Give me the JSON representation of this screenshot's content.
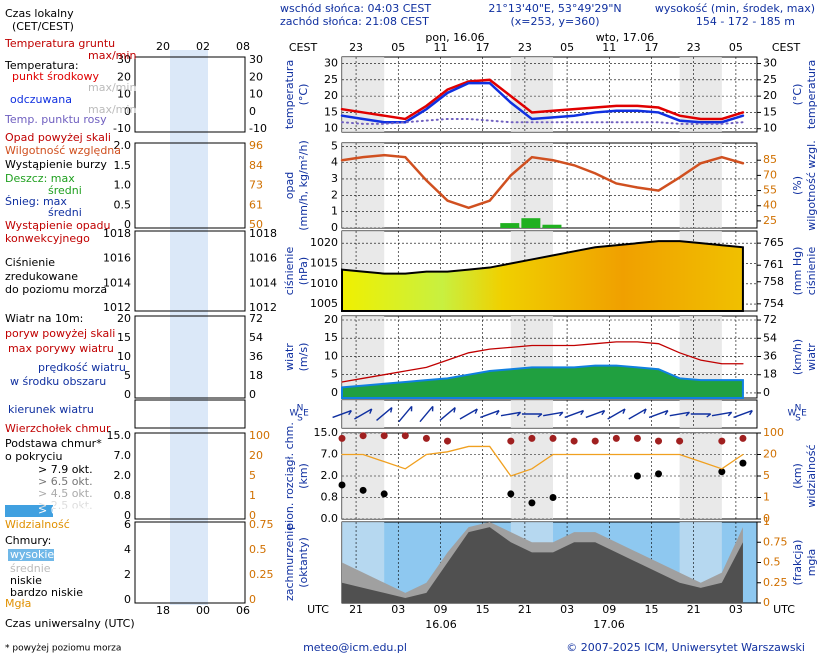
{
  "header": {
    "sunrise": "wschód słońca: 04:03 CEST",
    "sunset": "zachód słońca: 21:08 CEST",
    "coords": "21°13'40\"E, 53°49'29\"N",
    "grid": "(x=253, y=360)",
    "elev_title": "wysokość (min, środek, max)",
    "elev": "154 - 172 - 185 m",
    "tz_left": "CEST",
    "tz_right": "CEST",
    "date1": "pon, 16.06",
    "date2": "wto, 17.06",
    "utc_left": "UTC",
    "utc_right": "UTC",
    "udate1": "16.06",
    "udate2": "17.06"
  },
  "legend": {
    "items": [
      "Czas lokalny",
      "(CET/CEST)",
      "Temperatura gruntu",
      "max/min",
      "Temperatura:",
      "max/min",
      "max/min",
      "Opad powyżej skali",
      "Wystąpienie burzy",
      "Deszcz: max",
      "Śnieg: max",
      "średni",
      "Wystąpienie opadu",
      "konwekcyjnego",
      "zredukowane",
      "do poziomu morza",
      "Wiatr na 10m:",
      "poryw powyżej skali",
      "w środku obszaru",
      "Podstawa chmur*",
      "o pokryciu",
      "> 6.5 okt.",
      "> 4.5 okt.",
      "> 2.5 okt.",
      "> 0.1 okt.",
      "Chmury:",
      "wysokie",
      "bardzo niskie",
      "Mgła",
      "Czas uniwersalny (UTC)"
    ],
    "top_ticks": [
      "20",
      "02",
      "08"
    ],
    "bottom_ticks": [
      "18",
      "00",
      "06"
    ],
    "ticks": [
      {
        "left": [
          30,
          20,
          10,
          0,
          -10
        ],
        "right": [
          30,
          20,
          10,
          0,
          -10
        ]
      },
      {
        "left": [
          "2.0",
          "1.5",
          "1.0",
          "0.5",
          "0"
        ],
        "right": [
          96,
          84,
          73,
          61,
          50
        ]
      },
      {
        "left": [
          1018,
          1016,
          1014,
          1012
        ],
        "right": [
          1018,
          1016,
          1014,
          1012
        ]
      },
      {
        "left": [
          20,
          15,
          10,
          5,
          0
        ],
        "right": [
          72,
          54,
          36,
          18,
          0
        ]
      },
      {
        "left": [
          "15.0",
          "7.0",
          "2.0",
          "0.8",
          "0"
        ],
        "right": [
          100,
          20,
          5,
          1,
          0
        ]
      },
      {
        "left": [
          6,
          4,
          2,
          0
        ],
        "right": [
          0.75,
          0.5,
          0.25,
          0
        ]
      }
    ]
  },
  "footer": {
    "note": "* powyżej poziomu morza",
    "email": "meteo@icm.edu.pl",
    "copyright": "© 2007-2025 ICM, Uniwersytet Warszawski"
  },
  "chart_data": [
    {
      "type": "line",
      "ylabel": [
        "temperatura",
        "(°C)"
      ],
      "y2label": [
        "(°C)",
        "temperatura"
      ],
      "xlim": [
        0,
        59
      ],
      "xticks": [
        {
          "value": 2,
          "label": "23"
        },
        {
          "value": 8,
          "label": "05"
        },
        {
          "value": 14,
          "label": "11"
        },
        {
          "value": 20,
          "label": "17"
        },
        {
          "value": 26,
          "label": "23"
        },
        {
          "value": 32,
          "label": "05"
        },
        {
          "value": 38,
          "label": "11"
        },
        {
          "value": 44,
          "label": "17"
        },
        {
          "value": 50,
          "label": "23"
        },
        {
          "value": 56,
          "label": "05"
        }
      ],
      "x": [
        0,
        3,
        6,
        9,
        12,
        15,
        18,
        21,
        24,
        27,
        30,
        33,
        36,
        39,
        42,
        45,
        48,
        51,
        54,
        57
      ],
      "ylim": [
        9,
        32
      ],
      "yticks": [
        10,
        15,
        20,
        25,
        30
      ],
      "y2lim": [
        9,
        32
      ],
      "y2ticks": [
        10,
        15,
        20,
        25,
        30
      ],
      "grid": true,
      "series": [
        {
          "name": "punkt środkowy",
          "color": "#e00000",
          "values": [
            16,
            15,
            14,
            13,
            17,
            22,
            24.5,
            25,
            20,
            15,
            15.5,
            16,
            16.5,
            17,
            17,
            16.5,
            14,
            13,
            13,
            15
          ]
        },
        {
          "name": "odczuwana",
          "color": "#1030e0",
          "values": [
            14,
            13,
            12,
            12,
            16,
            21,
            24,
            24,
            18,
            13,
            13.5,
            14,
            15,
            15.5,
            15.5,
            15,
            12.5,
            12,
            12,
            14
          ]
        },
        {
          "name": "Temp. punktu rosy",
          "color": "#7060c0",
          "dotted": true,
          "values": [
            12,
            11.5,
            11.5,
            12,
            12.5,
            13,
            13,
            12.5,
            12,
            12,
            12,
            12,
            12,
            12,
            12,
            12,
            11.5,
            11.5,
            11.5,
            12
          ]
        }
      ]
    },
    {
      "type": "bar",
      "ylabel": [
        "opad",
        "(mm/h, kg/m²/h)"
      ],
      "y2label": [
        "(%)",
        "wilgotność wzgl."
      ],
      "xlim": [
        0,
        59
      ],
      "x": [
        0,
        3,
        6,
        9,
        12,
        15,
        18,
        21,
        24,
        27,
        30,
        33,
        36,
        39,
        42,
        45,
        48,
        51,
        54,
        57
      ],
      "ylim": [
        0,
        5.2
      ],
      "yticks": [
        0,
        1,
        2,
        3,
        4,
        5
      ],
      "y2lim": [
        18,
        102
      ],
      "y2ticks": [
        25,
        40,
        55,
        70,
        85
      ],
      "grid": true,
      "series": [
        {
          "name": "średni",
          "color": "#20b020",
          "values": [
            0,
            0,
            0,
            0,
            0,
            0,
            0,
            0,
            0.3,
            0.6,
            0.2,
            0,
            0,
            0,
            0,
            0,
            0,
            0,
            0,
            0
          ]
        },
        {
          "name": "Wilgotność względna",
          "color": "#d05020",
          "axis": "y2",
          "values": [
            85,
            88,
            90,
            88,
            65,
            45,
            38,
            45,
            70,
            88,
            85,
            80,
            72,
            62,
            58,
            55,
            68,
            82,
            88,
            82
          ]
        }
      ]
    },
    {
      "type": "area",
      "ylabel": [
        "ciśnienie",
        "(hPa)"
      ],
      "y2label": [
        "(mm Hg)",
        "ciśnienie"
      ],
      "xlim": [
        0,
        59
      ],
      "x": [
        0,
        3,
        6,
        9,
        12,
        15,
        18,
        21,
        24,
        27,
        30,
        33,
        36,
        39,
        42,
        45,
        48,
        51,
        54,
        57
      ],
      "ylim": [
        1003.3,
        1023
      ],
      "yticks": [
        1005,
        1010,
        1015,
        1020
      ],
      "y2lim": [
        752.7,
        767.2
      ],
      "y2ticks": [
        754,
        758,
        761,
        765
      ],
      "grid": true,
      "series": [
        {
          "name": "Ciśnienie",
          "color": "#000000",
          "values": [
            1013.5,
            1013,
            1012.5,
            1012.5,
            1013,
            1013,
            1013.5,
            1014,
            1015,
            1016,
            1017,
            1018,
            1019,
            1019.5,
            1020,
            1020.5,
            1020.5,
            1020,
            1019.5,
            1019
          ]
        }
      ]
    },
    {
      "type": "area",
      "ylabel": [
        "wiatr",
        "(m/s)"
      ],
      "y2label": [
        "(km/h)",
        "wiatr"
      ],
      "xlim": [
        0,
        59
      ],
      "x": [
        0,
        3,
        6,
        9,
        12,
        15,
        18,
        21,
        24,
        27,
        30,
        33,
        36,
        39,
        42,
        45,
        48,
        51,
        54,
        57
      ],
      "ylim": [
        -1.4,
        21.1
      ],
      "yticks": [
        0,
        5,
        10,
        15,
        20
      ],
      "y2lim": [
        -5,
        76
      ],
      "y2ticks": [
        0,
        18,
        36,
        54,
        72
      ],
      "grid": true,
      "series": [
        {
          "name": "prędkość wiatru",
          "color": "#1080e0",
          "values": [
            1.5,
            2,
            2.5,
            3,
            3.5,
            4,
            5,
            6,
            6.5,
            7,
            7,
            7,
            7.5,
            7.5,
            7,
            6.5,
            4,
            3.5,
            3.5,
            3.5
          ]
        },
        {
          "name": "max porywy wiatru",
          "color": "#c00000",
          "line": true,
          "values": [
            3,
            4,
            5,
            6,
            7,
            9,
            11,
            12,
            12.5,
            13,
            13,
            13,
            13.5,
            14,
            14,
            13.5,
            11,
            9,
            8,
            8
          ]
        }
      ]
    },
    {
      "type": "direction",
      "compass": [
        "N",
        "W",
        "S",
        "E"
      ],
      "xlim": [
        0,
        59
      ],
      "x": [
        0,
        3,
        6,
        9,
        12,
        15,
        18,
        21,
        24,
        27,
        30,
        33,
        36,
        39,
        42,
        45,
        48,
        51,
        54,
        57
      ],
      "series": [
        {
          "name": "kierunek wiatru",
          "color": "#1030a0",
          "values": [
            250,
            240,
            230,
            220,
            220,
            230,
            240,
            250,
            260,
            270,
            260,
            250,
            250,
            240,
            240,
            250,
            260,
            270,
            260,
            250
          ]
        }
      ]
    },
    {
      "type": "dots",
      "scale": "piecewise",
      "ylabel": [
        "pion. rozciągł. chm.",
        "(km)"
      ],
      "y2label": [
        "(km)",
        "widzialność"
      ],
      "xlim": [
        0,
        59
      ],
      "x": [
        0,
        3,
        6,
        9,
        12,
        15,
        18,
        21,
        24,
        27,
        30,
        33,
        36,
        39,
        42,
        45,
        48,
        51,
        54,
        57
      ],
      "yticks": [
        {
          "value": 0,
          "label": "0.0"
        },
        {
          "value": 0.8,
          "label": "0.8"
        },
        {
          "value": 2,
          "label": "2.0"
        },
        {
          "value": 7,
          "label": "7.0"
        },
        {
          "value": 15,
          "label": "15.0"
        }
      ],
      "y2ticks": [
        0,
        1,
        5,
        20,
        100
      ],
      "grid": true,
      "series": [
        {
          "name": "Wierzchołek chmur",
          "color": "#a02020",
          "values": [
            13,
            14,
            14,
            14,
            13,
            12,
            null,
            null,
            12,
            13,
            13,
            12,
            12,
            13,
            13,
            12,
            12,
            null,
            12,
            13
          ]
        },
        {
          "name": "> 7.9 okt.",
          "color": "#000000",
          "values": [
            1.5,
            1.2,
            1,
            null,
            null,
            null,
            null,
            null,
            1,
            0.6,
            0.8,
            null,
            null,
            null,
            2,
            2.5,
            null,
            null,
            3,
            5
          ]
        },
        {
          "name": "Widzialność",
          "color": "#f0a020",
          "axis": "y2",
          "line": true,
          "values": [
            20,
            20,
            15,
            10,
            20,
            30,
            50,
            50,
            5,
            10,
            20,
            20,
            20,
            20,
            20,
            20,
            20,
            15,
            10,
            20
          ]
        }
      ]
    },
    {
      "type": "area",
      "ylabel": [
        "zachmurzenie",
        "(oktanty)"
      ],
      "y2label": [
        "(frakcja)",
        "mgła"
      ],
      "xlim": [
        0,
        59
      ],
      "x": [
        0,
        3,
        6,
        9,
        12,
        15,
        18,
        21,
        24,
        27,
        30,
        33,
        36,
        39,
        42,
        45,
        48,
        51,
        54,
        57
      ],
      "xticks": [
        {
          "value": 2,
          "label": "21"
        },
        {
          "value": 8,
          "label": "03"
        },
        {
          "value": 14,
          "label": "09"
        },
        {
          "value": 20,
          "label": "15"
        },
        {
          "value": 26,
          "label": "21"
        },
        {
          "value": 32,
          "label": "03"
        },
        {
          "value": 38,
          "label": "09"
        },
        {
          "value": 44,
          "label": "15"
        },
        {
          "value": 50,
          "label": "21"
        },
        {
          "value": 56,
          "label": "03"
        }
      ],
      "ylim": [
        0,
        8
      ],
      "y2lim": [
        0,
        1
      ],
      "y2ticks": [
        0,
        0.25,
        0.5,
        0.75,
        1
      ],
      "grid": true,
      "series": [
        {
          "name": "średnie",
          "color": "#a0a0a0",
          "values": [
            4,
            3,
            2,
            1,
            2,
            5,
            7.5,
            8,
            7,
            6,
            6,
            7,
            7,
            6,
            5,
            4,
            3,
            2,
            3,
            7.5
          ]
        },
        {
          "name": "niskie",
          "color": "#505050",
          "values": [
            2,
            1.5,
            1,
            0.5,
            1,
            4,
            7,
            7.5,
            6,
            5,
            5,
            6,
            6,
            5,
            4,
            3,
            2,
            1.5,
            2,
            6
          ]
        }
      ]
    }
  ]
}
